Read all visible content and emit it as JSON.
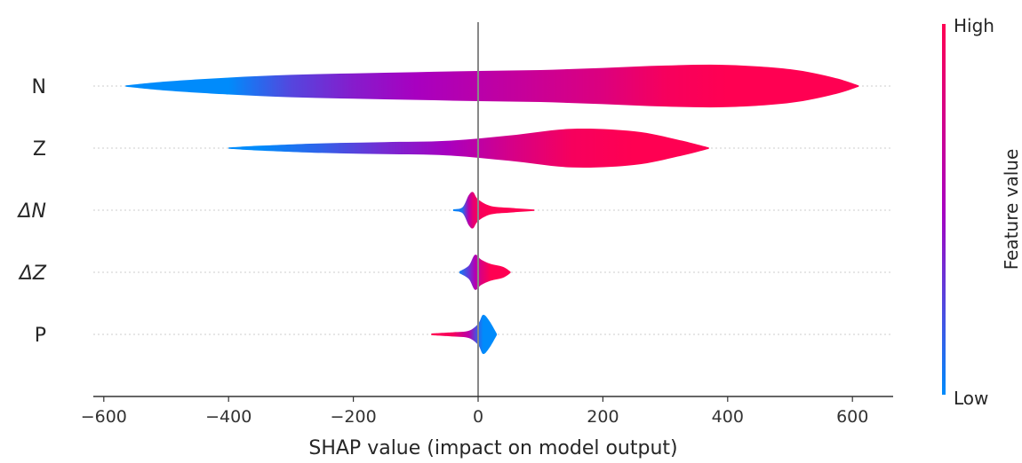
{
  "chart_data": {
    "type": "violin",
    "xlabel": "SHAP value (impact on model output)",
    "xticks": [
      -600,
      -400,
      -200,
      0,
      200,
      400,
      600
    ],
    "xtick_labels": [
      "−600",
      "−400",
      "−200",
      "0",
      "200",
      "400",
      "600"
    ],
    "xlim": [
      -620,
      670
    ],
    "features": [
      {
        "label": "N",
        "italic": false,
        "profile": [
          {
            "x": -565,
            "w": 0.02,
            "c": 0.0
          },
          {
            "x": -500,
            "w": 0.15,
            "c": 0.0
          },
          {
            "x": -400,
            "w": 0.28,
            "c": 0.0
          },
          {
            "x": -300,
            "w": 0.37,
            "c": 0.25
          },
          {
            "x": -200,
            "w": 0.42,
            "c": 0.4
          },
          {
            "x": -100,
            "w": 0.46,
            "c": 0.5
          },
          {
            "x": 0,
            "w": 0.5,
            "c": 0.6
          },
          {
            "x": 100,
            "w": 0.53,
            "c": 0.7
          },
          {
            "x": 200,
            "w": 0.6,
            "c": 0.8
          },
          {
            "x": 300,
            "w": 0.68,
            "c": 0.95
          },
          {
            "x": 400,
            "w": 0.7,
            "c": 1.0
          },
          {
            "x": 500,
            "w": 0.56,
            "c": 1.0
          },
          {
            "x": 570,
            "w": 0.28,
            "c": 1.0
          },
          {
            "x": 610,
            "w": 0.02,
            "c": 1.0
          }
        ]
      },
      {
        "label": "Z",
        "italic": false,
        "profile": [
          {
            "x": -400,
            "w": 0.02,
            "c": 0.0
          },
          {
            "x": -350,
            "w": 0.08,
            "c": 0.0
          },
          {
            "x": -250,
            "w": 0.16,
            "c": 0.15
          },
          {
            "x": -150,
            "w": 0.2,
            "c": 0.35
          },
          {
            "x": -50,
            "w": 0.24,
            "c": 0.5
          },
          {
            "x": 50,
            "w": 0.42,
            "c": 0.75
          },
          {
            "x": 150,
            "w": 0.64,
            "c": 0.95
          },
          {
            "x": 250,
            "w": 0.56,
            "c": 1.0
          },
          {
            "x": 320,
            "w": 0.28,
            "c": 1.0
          },
          {
            "x": 370,
            "w": 0.02,
            "c": 1.0
          }
        ]
      },
      {
        "label": "ΔN",
        "italic": true,
        "profile": [
          {
            "x": -40,
            "w": 0.03,
            "c": 0.0
          },
          {
            "x": -25,
            "w": 0.1,
            "c": 0.1
          },
          {
            "x": -15,
            "w": 0.5,
            "c": 0.6
          },
          {
            "x": -8,
            "w": 0.6,
            "c": 0.85
          },
          {
            "x": 0,
            "w": 0.36,
            "c": 0.95
          },
          {
            "x": 20,
            "w": 0.14,
            "c": 1.0
          },
          {
            "x": 50,
            "w": 0.08,
            "c": 1.0
          },
          {
            "x": 90,
            "w": 0.02,
            "c": 1.0
          }
        ]
      },
      {
        "label": "ΔZ",
        "italic": true,
        "profile": [
          {
            "x": -30,
            "w": 0.03,
            "c": 0.05
          },
          {
            "x": -15,
            "w": 0.22,
            "c": 0.3
          },
          {
            "x": -5,
            "w": 0.58,
            "c": 0.55
          },
          {
            "x": 5,
            "w": 0.42,
            "c": 0.8
          },
          {
            "x": 20,
            "w": 0.28,
            "c": 1.0
          },
          {
            "x": 40,
            "w": 0.18,
            "c": 1.0
          },
          {
            "x": 52,
            "w": 0.02,
            "c": 1.0
          }
        ]
      },
      {
        "label": "P",
        "italic": false,
        "profile": [
          {
            "x": -75,
            "w": 0.03,
            "c": 1.0
          },
          {
            "x": -40,
            "w": 0.07,
            "c": 0.95
          },
          {
            "x": -15,
            "w": 0.12,
            "c": 0.6
          },
          {
            "x": 0,
            "w": 0.35,
            "c": 0.15
          },
          {
            "x": 8,
            "w": 0.65,
            "c": 0.0
          },
          {
            "x": 18,
            "w": 0.45,
            "c": 0.0
          },
          {
            "x": 30,
            "w": 0.02,
            "c": 0.0
          }
        ]
      }
    ],
    "colorbar": {
      "title": "Feature value",
      "high_label": "High",
      "low_label": "Low",
      "low_color": "#008bfb",
      "high_color": "#ff0052"
    },
    "grid": false,
    "zero_line": true
  }
}
